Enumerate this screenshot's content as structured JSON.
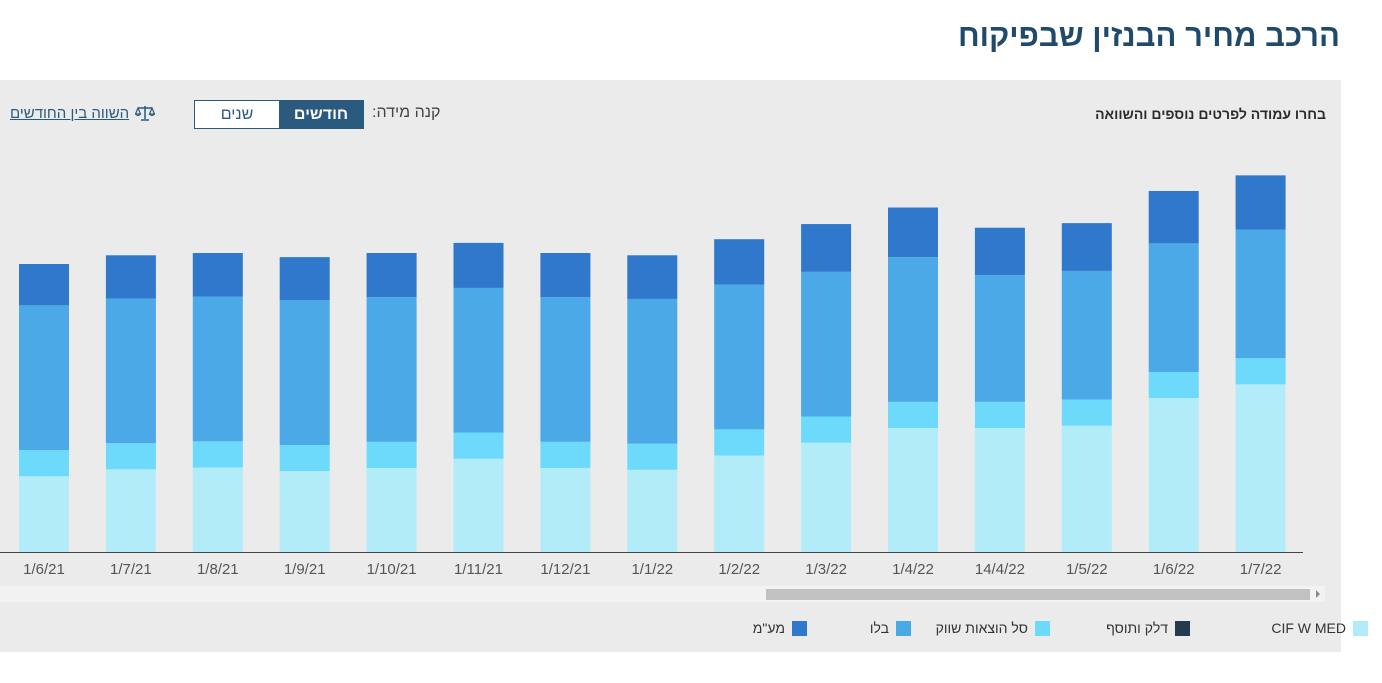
{
  "title": "הרכב מחיר הבנזין שבפיקוח",
  "instruction": "בחרו עמודה לפרטים נוספים והשוואה",
  "scale": {
    "label": "קנה מידה:",
    "options": [
      "חודשים",
      "שנים"
    ],
    "selected": "חודשים"
  },
  "compare_link": "השווה בין החודשים",
  "icons": {
    "compare": "scales-icon",
    "scroll_right": "arrow-right-icon"
  },
  "chart_data": {
    "type": "bar",
    "stacked": true,
    "categories": [
      "1/6/21",
      "1/7/21",
      "1/8/21",
      "1/9/21",
      "1/10/21",
      "1/11/21",
      "1/12/21",
      "1/1/22",
      "1/2/22",
      "1/3/22",
      "1/4/22",
      "14/4/22",
      "1/5/22",
      "1/6/22",
      "1/7/22"
    ],
    "series": [
      {
        "name": "CIF W MED",
        "color": "#b3ecf9",
        "values": [
          1.65,
          1.8,
          1.84,
          1.76,
          1.83,
          2.03,
          1.83,
          1.79,
          2.1,
          2.38,
          2.7,
          2.7,
          2.75,
          3.35,
          3.65
        ]
      },
      {
        "name": "דלק ותוסף",
        "color": "#233a4f",
        "values": [
          0,
          0,
          0,
          0,
          0,
          0,
          0,
          0,
          0,
          0,
          0,
          0,
          0,
          0,
          0
        ]
      },
      {
        "name": "סל הוצאות שווק",
        "color": "#6dd9fb",
        "values": [
          0.57,
          0.57,
          0.57,
          0.57,
          0.57,
          0.57,
          0.57,
          0.57,
          0.57,
          0.57,
          0.57,
          0.57,
          0.57,
          0.57,
          0.57
        ]
      },
      {
        "name": "בלו",
        "color": "#4aa9e6",
        "values": [
          3.15,
          3.15,
          3.15,
          3.15,
          3.15,
          3.15,
          3.15,
          3.15,
          3.15,
          3.15,
          3.15,
          2.76,
          2.8,
          2.8,
          2.8
        ]
      },
      {
        "name": "מע\"מ",
        "color": "#2f78cb",
        "values": [
          0.9,
          0.94,
          0.95,
          0.94,
          0.96,
          0.98,
          0.96,
          0.95,
          0.99,
          1.04,
          1.08,
          1.03,
          1.04,
          1.14,
          1.18
        ]
      }
    ],
    "ylim": [
      0,
      8.6
    ],
    "grid": false,
    "xlabel": "",
    "ylabel": "",
    "legend_position": "bottom"
  }
}
